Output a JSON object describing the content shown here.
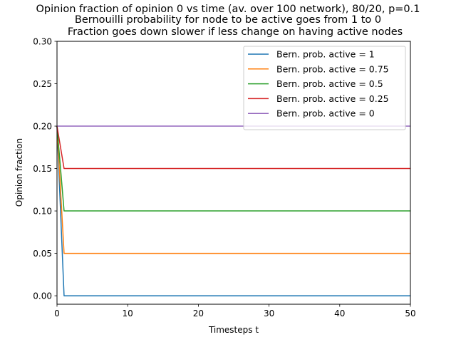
{
  "chart_data": {
    "type": "line",
    "title_lines": [
      "Opinion fraction of opinion 0 vs time (av. over 100 network), 80/20, p=0.1",
      "Bernouilli probability for node to be active goes from 1 to 0",
      "Fraction goes down slower if less change on having active nodes"
    ],
    "xlabel": "Timesteps t",
    "ylabel": "Opinion fraction",
    "xlim": [
      0,
      50
    ],
    "ylim": [
      -0.01,
      0.3
    ],
    "xticks": [
      0,
      10,
      20,
      30,
      40,
      50
    ],
    "yticks": [
      0.0,
      0.05,
      0.1,
      0.15,
      0.2,
      0.25,
      0.3
    ],
    "xtick_labels": [
      "0",
      "10",
      "20",
      "30",
      "40",
      "50"
    ],
    "ytick_labels": [
      "0.00",
      "0.05",
      "0.10",
      "0.15",
      "0.20",
      "0.25",
      "0.30"
    ],
    "grid": false,
    "legend_position": "top-right",
    "series": [
      {
        "name": "Bern. prob. active = 1",
        "color": "#1f77b4",
        "x": [
          0,
          1,
          50
        ],
        "y": [
          0.2,
          0.0,
          0.0
        ]
      },
      {
        "name": "Bern. prob. active = 0.75",
        "color": "#ff7f0e",
        "x": [
          0,
          1,
          50
        ],
        "y": [
          0.2,
          0.05,
          0.05
        ]
      },
      {
        "name": "Bern. prob. active = 0.5",
        "color": "#2ca02c",
        "x": [
          0,
          1,
          50
        ],
        "y": [
          0.2,
          0.1,
          0.1
        ]
      },
      {
        "name": "Bern. prob. active = 0.25",
        "color": "#d62728",
        "x": [
          0,
          1,
          50
        ],
        "y": [
          0.2,
          0.15,
          0.15
        ]
      },
      {
        "name": "Bern. prob. active = 0",
        "color": "#9467bd",
        "x": [
          0,
          1,
          50
        ],
        "y": [
          0.2,
          0.2,
          0.2
        ]
      }
    ]
  }
}
